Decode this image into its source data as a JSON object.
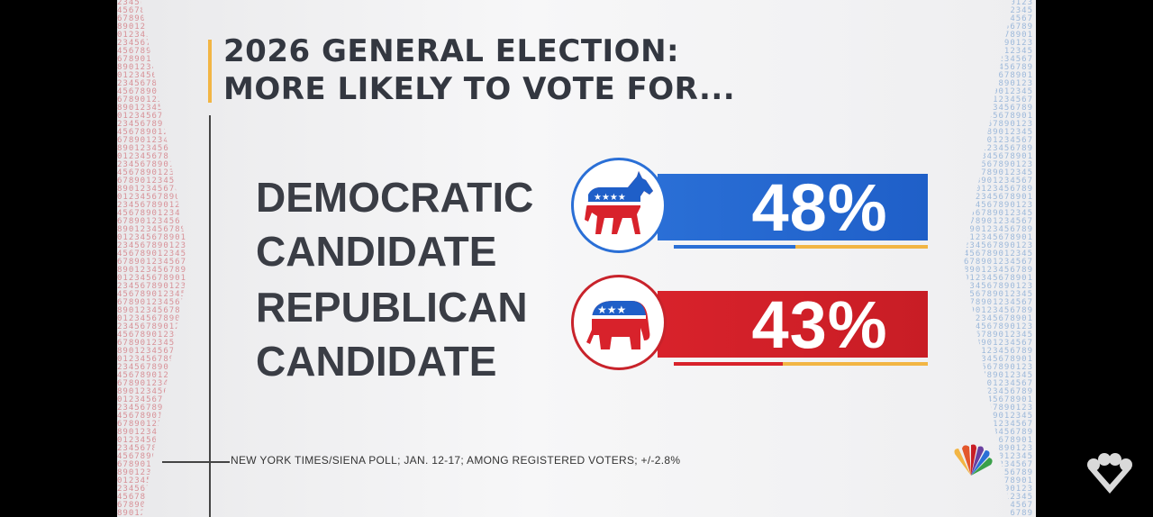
{
  "title": {
    "line1": "2026 GENERAL ELECTION:",
    "line2": "MORE LIKELY TO VOTE FOR..."
  },
  "source": "NEW YORK TIMES/SIENA POLL; JAN. 12-17; AMONG REGISTERED VOTERS; +/-2.8%",
  "side_pattern_text": "0123456789012345678901234567890123456789",
  "colors": {
    "democratic": "#2a6fd6",
    "republican": "#d8222b",
    "accent": "#f2b544",
    "text": "#333740"
  },
  "chart_data": {
    "type": "bar",
    "title": "2026 GENERAL ELECTION: MORE LIKELY TO VOTE FOR...",
    "categories": [
      "DEMOCRATIC CANDIDATE",
      "REPUBLICAN CANDIDATE"
    ],
    "values": [
      48,
      43
    ],
    "value_labels": [
      "48%",
      "43%"
    ],
    "unit": "%",
    "ylim": [
      0,
      100
    ],
    "grid": false,
    "bars": [
      {
        "line1": "DEMOCRATIC",
        "line2": "CANDIDATE",
        "value": 48,
        "label": "48%",
        "color": "#2a6fd6",
        "icon": "democratic-donkey-icon"
      },
      {
        "line1": "REPUBLICAN",
        "line2": "CANDIDATE",
        "value": 43,
        "label": "43%",
        "color": "#d8222b",
        "icon": "republican-elephant-icon"
      }
    ]
  }
}
